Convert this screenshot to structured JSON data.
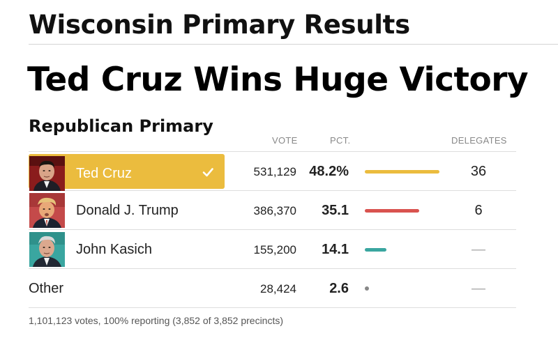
{
  "page": {
    "title": "Wisconsin Primary Results",
    "headline": "Ted Cruz Wins Huge Victory"
  },
  "race": {
    "title": "Republican Primary",
    "columns": {
      "vote": "VOTE",
      "pct": "PCT.",
      "delegates": "DELEGATES"
    },
    "candidates": [
      {
        "name": "Ted Cruz",
        "votes": "531,129",
        "pct": "48.2%",
        "pct_value": 48.2,
        "delegates": "36",
        "winner": true,
        "bar_color": "#ebbc3e"
      },
      {
        "name": "Donald J. Trump",
        "votes": "386,370",
        "pct": "35.1",
        "pct_value": 35.1,
        "delegates": "6",
        "winner": false,
        "bar_color": "#d9534f"
      },
      {
        "name": "John Kasich",
        "votes": "155,200",
        "pct": "14.1",
        "pct_value": 14.1,
        "delegates": "—",
        "winner": false,
        "bar_color": "#3aa6a0"
      }
    ],
    "other": {
      "name": "Other",
      "votes": "28,424",
      "pct": "2.6",
      "pct_value": 2.6,
      "delegates": "—"
    },
    "footnote": "1,101,123 votes, 100% reporting (3,852 of 3,852 precincts)"
  },
  "colors": {
    "winner_highlight": "#ebbc3e",
    "trump": "#d9534f",
    "kasich": "#3aa6a0"
  }
}
